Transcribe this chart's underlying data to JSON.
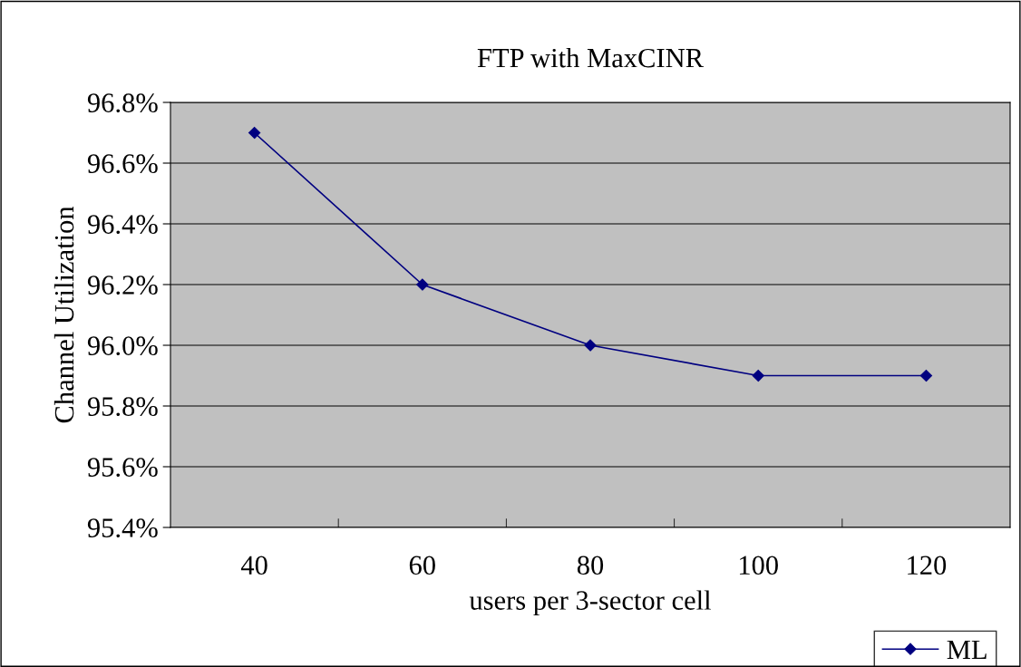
{
  "chart_data": {
    "type": "line",
    "title": "FTP with MaxCINR",
    "xlabel": "users per 3-sector cell",
    "ylabel": "Channel Utilization",
    "categories": [
      "40",
      "60",
      "80",
      "100",
      "120"
    ],
    "series": [
      {
        "name": "ML",
        "color": "#000080",
        "values": [
          96.7,
          96.2,
          96.0,
          95.9,
          95.9
        ]
      }
    ],
    "ylim": [
      95.4,
      96.8
    ],
    "yticks": [
      {
        "value": 95.4,
        "label": "95.4%"
      },
      {
        "value": 95.6,
        "label": "95.6%"
      },
      {
        "value": 95.8,
        "label": "95.8%"
      },
      {
        "value": 96.0,
        "label": "96.0%"
      },
      {
        "value": 96.2,
        "label": "96.2%"
      },
      {
        "value": 96.4,
        "label": "96.4%"
      },
      {
        "value": 96.6,
        "label": "96.6%"
      },
      {
        "value": 96.8,
        "label": "96.8%"
      }
    ],
    "grid": "y",
    "legend": "bottom right",
    "marker": "diamond",
    "line_style": "solid"
  }
}
